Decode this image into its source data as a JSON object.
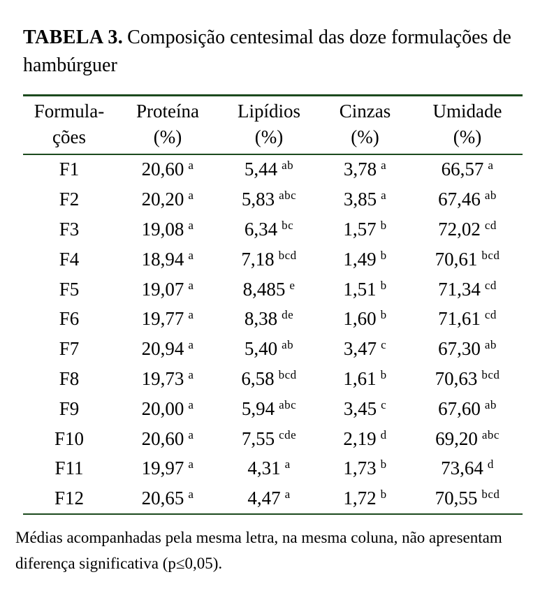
{
  "caption": {
    "label": "TABELA 3.",
    "text": "Composição centesimal das doze formulações de hambúrguer"
  },
  "table": {
    "columns": [
      {
        "line1": "Formula-",
        "line2": "ções"
      },
      {
        "line1": "Proteína",
        "line2": "(%)"
      },
      {
        "line1": "Lipídios",
        "line2": "(%)"
      },
      {
        "line1": "Cinzas",
        "line2": "(%)"
      },
      {
        "line1": "Umidade",
        "line2": "(%)"
      }
    ],
    "rows": [
      {
        "id": "F1",
        "cells": [
          {
            "v": "20,60",
            "s": "a"
          },
          {
            "v": "5,44",
            "s": "ab"
          },
          {
            "v": "3,78",
            "s": "a"
          },
          {
            "v": "66,57",
            "s": "a"
          }
        ]
      },
      {
        "id": "F2",
        "cells": [
          {
            "v": "20,20",
            "s": "a"
          },
          {
            "v": "5,83",
            "s": "abc"
          },
          {
            "v": "3,85",
            "s": "a"
          },
          {
            "v": "67,46",
            "s": "ab"
          }
        ]
      },
      {
        "id": "F3",
        "cells": [
          {
            "v": "19,08",
            "s": "a"
          },
          {
            "v": "6,34",
            "s": "bc"
          },
          {
            "v": "1,57",
            "s": "b"
          },
          {
            "v": "72,02",
            "s": "cd"
          }
        ]
      },
      {
        "id": "F4",
        "cells": [
          {
            "v": "18,94",
            "s": "a"
          },
          {
            "v": "7,18",
            "s": "bcd"
          },
          {
            "v": "1,49",
            "s": "b"
          },
          {
            "v": "70,61",
            "s": "bcd"
          }
        ]
      },
      {
        "id": "F5",
        "cells": [
          {
            "v": "19,07",
            "s": "a"
          },
          {
            "v": "8,485",
            "s": "e"
          },
          {
            "v": "1,51",
            "s": "b"
          },
          {
            "v": "71,34",
            "s": "cd"
          }
        ]
      },
      {
        "id": "F6",
        "cells": [
          {
            "v": "19,77",
            "s": "a"
          },
          {
            "v": "8,38",
            "s": "de"
          },
          {
            "v": "1,60",
            "s": "b"
          },
          {
            "v": "71,61",
            "s": "cd"
          }
        ]
      },
      {
        "id": "F7",
        "cells": [
          {
            "v": "20,94",
            "s": "a"
          },
          {
            "v": "5,40",
            "s": "ab"
          },
          {
            "v": "3,47",
            "s": "c"
          },
          {
            "v": "67,30",
            "s": "ab"
          }
        ]
      },
      {
        "id": "F8",
        "cells": [
          {
            "v": "19,73",
            "s": "a"
          },
          {
            "v": "6,58",
            "s": "bcd"
          },
          {
            "v": "1,61",
            "s": "b"
          },
          {
            "v": "70,63",
            "s": "bcd"
          }
        ]
      },
      {
        "id": "F9",
        "cells": [
          {
            "v": "20,00",
            "s": "a"
          },
          {
            "v": "5,94",
            "s": "abc"
          },
          {
            "v": "3,45",
            "s": "c"
          },
          {
            "v": "67,60",
            "s": "ab"
          }
        ]
      },
      {
        "id": "F10",
        "cells": [
          {
            "v": "20,60",
            "s": "a"
          },
          {
            "v": "7,55",
            "s": "cde"
          },
          {
            "v": "2,19",
            "s": "d"
          },
          {
            "v": "69,20",
            "s": "abc"
          }
        ]
      },
      {
        "id": "F11",
        "cells": [
          {
            "v": "19,97",
            "s": "a"
          },
          {
            "v": "4,31",
            "s": "a"
          },
          {
            "v": "1,73",
            "s": "b"
          },
          {
            "v": "73,64",
            "s": "d"
          }
        ]
      },
      {
        "id": "F12",
        "cells": [
          {
            "v": "20,65",
            "s": "a"
          },
          {
            "v": "4,47",
            "s": "a"
          },
          {
            "v": "1,72",
            "s": "b"
          },
          {
            "v": "70,55",
            "s": "bcd"
          }
        ]
      }
    ]
  },
  "footnote": "Médias acompanhadas pela mesma letra, na mesma coluna, não apresentam diferença significativa (p≤0,05).",
  "colors": {
    "rule_line": "#1c4a1e",
    "text": "#000000",
    "background": "#ffffff"
  }
}
